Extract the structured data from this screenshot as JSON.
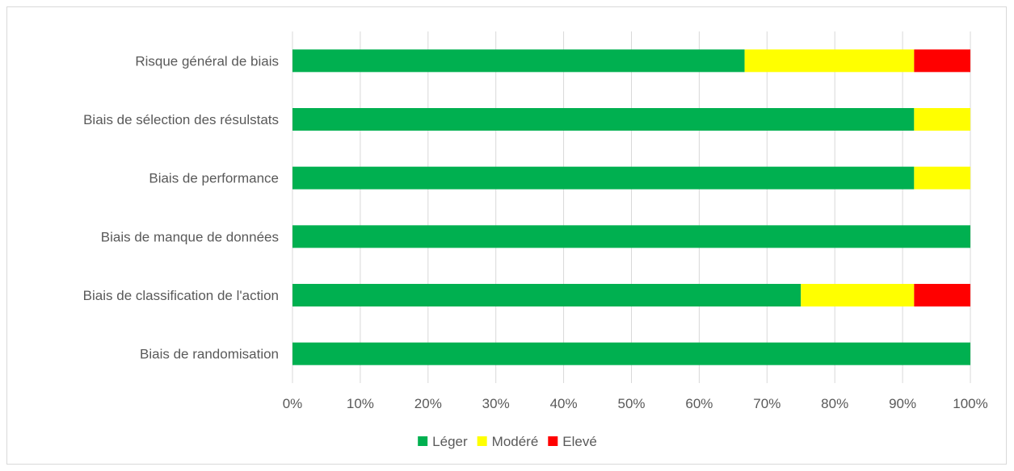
{
  "chart_data": {
    "type": "bar",
    "orientation": "horizontal",
    "stacked": "percent",
    "categories": [
      "Risque général de biais",
      "Biais de sélection des résulstats",
      "Biais de performance",
      "Biais de manque de données",
      "Biais de classification de l'action",
      "Biais de randomisation"
    ],
    "series": [
      {
        "name": "Léger",
        "color": "#00b050",
        "values": [
          66.7,
          91.7,
          91.7,
          100,
          75,
          100
        ]
      },
      {
        "name": "Modéré",
        "color": "#ffff00",
        "values": [
          25,
          8.3,
          8.3,
          0,
          16.7,
          0
        ]
      },
      {
        "name": "Elevé",
        "color": "#ff0000",
        "values": [
          8.3,
          0,
          0,
          0,
          8.3,
          0
        ]
      }
    ],
    "xlim": [
      0,
      100
    ],
    "x_ticks": [
      "0%",
      "10%",
      "20%",
      "30%",
      "40%",
      "50%",
      "60%",
      "70%",
      "80%",
      "90%",
      "100%"
    ],
    "grid": "vertical",
    "legend_position": "bottom",
    "title": "",
    "xlabel": "",
    "ylabel": ""
  }
}
